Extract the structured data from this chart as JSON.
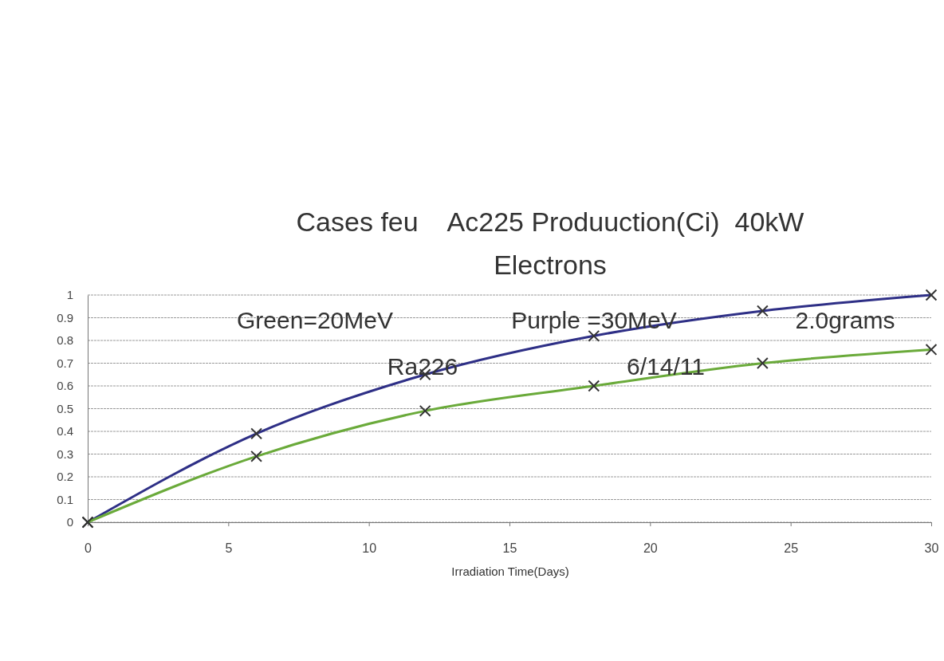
{
  "chart_data": {
    "type": "line",
    "title": "Cases feu    Ac225 Produuction(Ci)  40kW Electrons",
    "xlabel": "Irradiation Time(Days)",
    "x": [
      0,
      6,
      12,
      18,
      24,
      30
    ],
    "series": [
      {
        "color": "#2e2f86",
        "values": [
          0,
          0.39,
          0.65,
          0.82,
          0.93,
          1.0
        ]
      },
      {
        "color": "#6aaa3a",
        "values": [
          0,
          0.29,
          0.49,
          0.6,
          0.7,
          0.76
        ]
      }
    ],
    "xlim": [
      0,
      30
    ],
    "xticks": [
      0,
      5,
      10,
      15,
      20,
      25,
      30
    ],
    "ylim": [
      0,
      1
    ],
    "yticks": [
      0,
      0.1,
      0.2,
      0.3,
      0.4,
      0.5,
      0.6,
      0.7,
      0.8,
      0.9,
      1
    ],
    "grid": "y",
    "marker": "cross",
    "line_style": "solid",
    "annotations": [
      "Green=20MeV",
      "Purple =30MeV",
      "2.0grams",
      "Ra226",
      "6/14/11"
    ]
  }
}
